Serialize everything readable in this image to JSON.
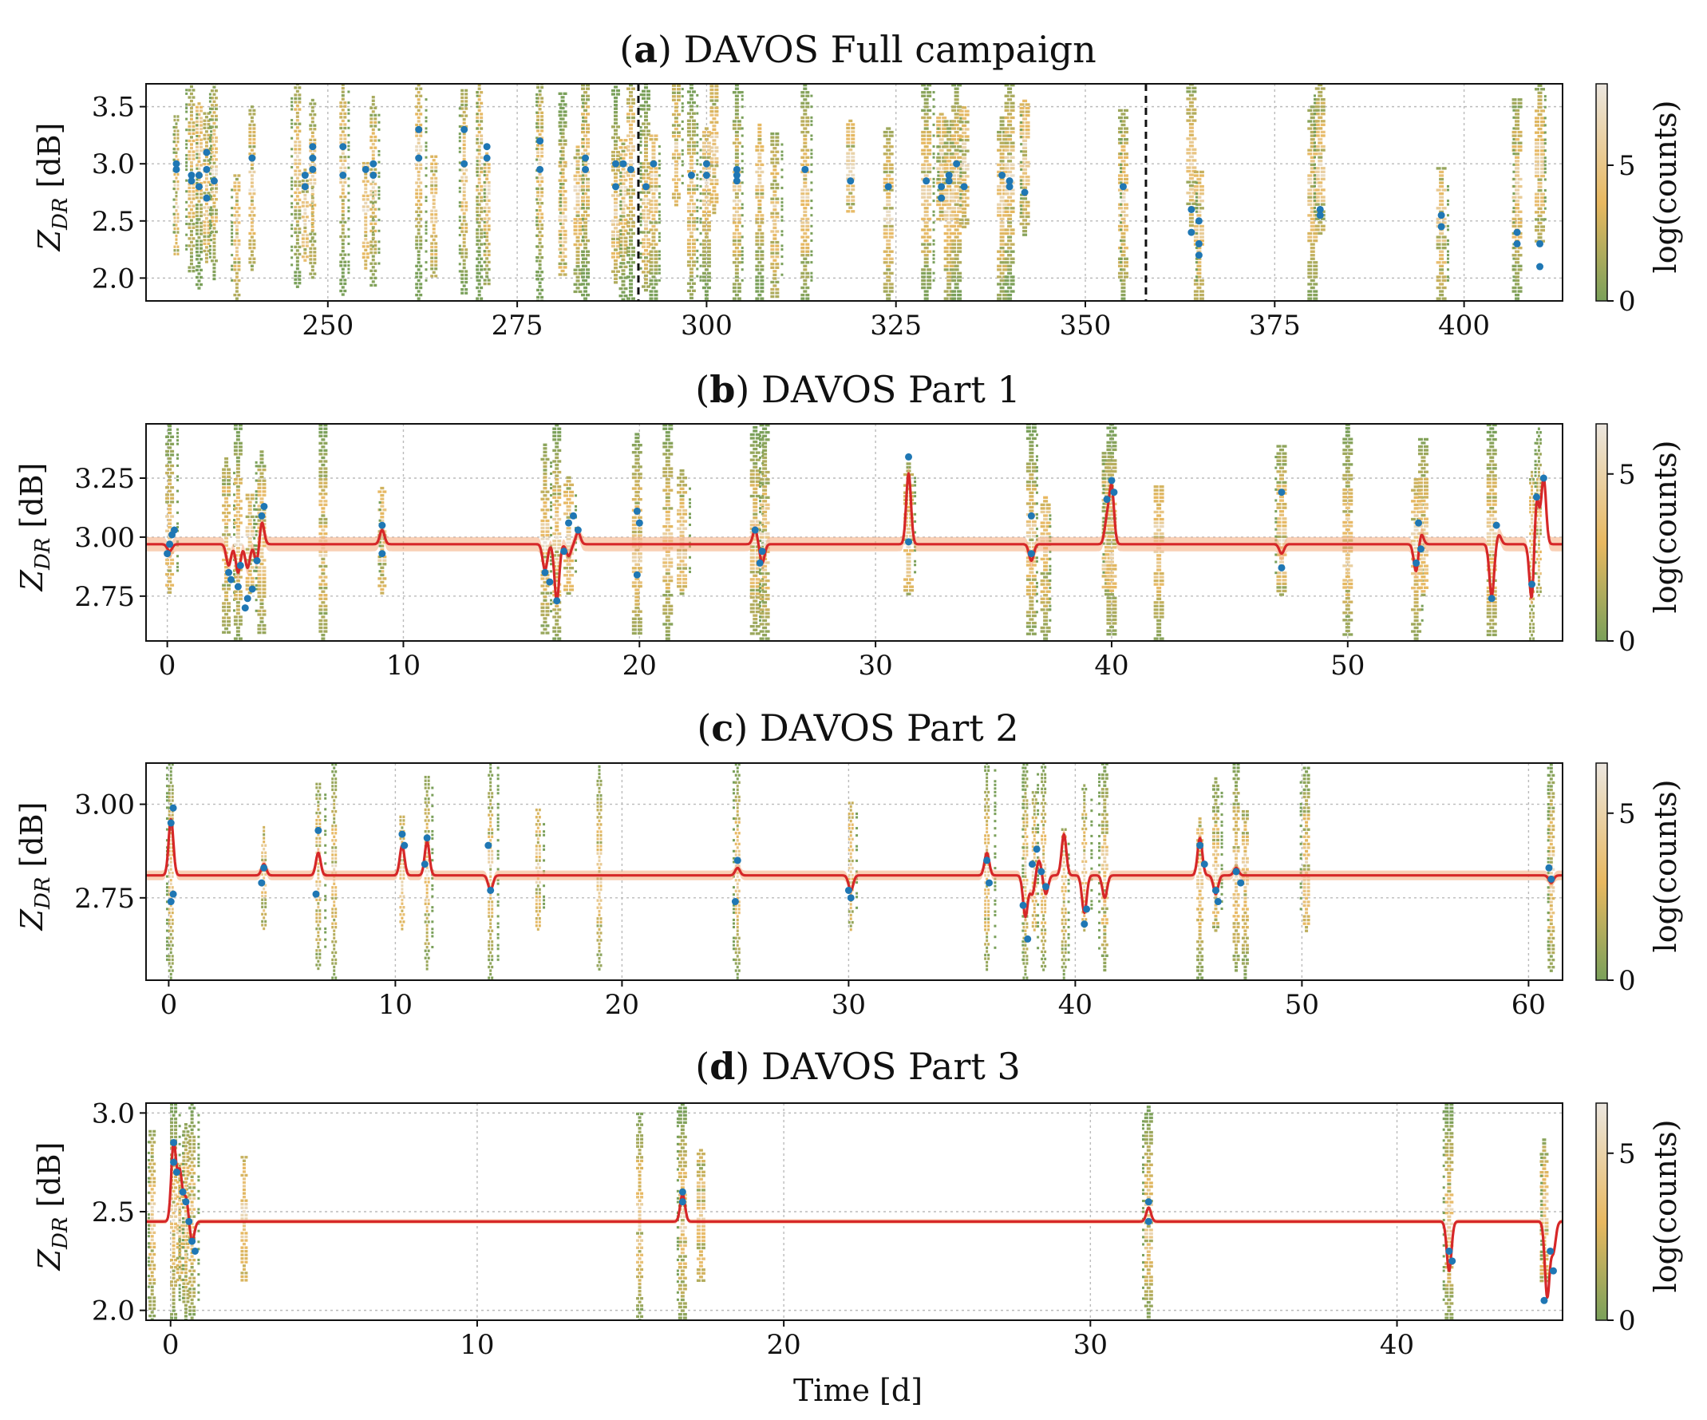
{
  "figure": {
    "xlabel": "Time [d]"
  },
  "colors": {
    "point": "#1f77b4",
    "fit": "#d62728",
    "band": "#f4a97a",
    "grid": "#bbbbbb",
    "hist_low": "#7aa05a",
    "hist_mid": "#e8b860",
    "hist_high": "#e9e4dc"
  },
  "colorbar": {
    "label": "log(counts)"
  },
  "chart_data": [
    {
      "type": "scatter",
      "panel_label": "a",
      "title": "DAVOS Full campaign",
      "ylabel_main": "Z",
      "ylabel_sub": "DR",
      "ylabel_unit": " [dB]",
      "xlim": [
        226,
        413
      ],
      "ylim": [
        1.8,
        3.7
      ],
      "xticks": [
        250,
        275,
        300,
        325,
        350,
        375,
        400
      ],
      "xtick_labels": [
        "250",
        "275",
        "300",
        "325",
        "350",
        "375",
        "400"
      ],
      "yticks": [
        2.0,
        2.5,
        3.0,
        3.5
      ],
      "ytick_labels": [
        "2.0",
        "2.5",
        "3.0",
        "3.5"
      ],
      "colorbar_ticks": [
        0,
        5
      ],
      "colorbar_tick_labels": [
        "0",
        "5"
      ],
      "colorbar_max": 8,
      "vlines": [
        291,
        358
      ],
      "event_times": [
        230,
        232,
        233,
        234,
        235,
        238,
        240,
        246,
        247,
        248,
        252,
        255,
        256,
        262,
        264,
        268,
        270,
        271,
        278,
        281,
        283,
        284,
        288,
        289,
        290,
        292,
        293,
        296,
        298,
        300,
        301,
        304,
        307,
        309,
        313,
        319,
        324,
        329,
        331,
        332,
        333,
        334,
        339,
        340,
        342,
        355,
        364,
        365,
        380,
        381,
        397,
        407,
        410
      ],
      "points": [
        [
          230,
          2.95
        ],
        [
          230,
          3.0
        ],
        [
          232,
          2.85
        ],
        [
          232,
          2.9
        ],
        [
          233,
          2.8
        ],
        [
          233,
          2.9
        ],
        [
          234,
          2.7
        ],
        [
          234,
          2.95
        ],
        [
          234,
          3.1
        ],
        [
          235,
          2.85
        ],
        [
          240,
          3.05
        ],
        [
          247,
          2.8
        ],
        [
          247,
          2.9
        ],
        [
          248,
          2.95
        ],
        [
          248,
          3.05
        ],
        [
          248,
          3.15
        ],
        [
          252,
          2.9
        ],
        [
          252,
          3.15
        ],
        [
          255,
          2.95
        ],
        [
          256,
          3.0
        ],
        [
          256,
          2.9
        ],
        [
          262,
          3.05
        ],
        [
          262,
          3.3
        ],
        [
          268,
          3.0
        ],
        [
          268,
          3.3
        ],
        [
          271,
          3.05
        ],
        [
          271,
          3.15
        ],
        [
          278,
          2.95
        ],
        [
          278,
          3.2
        ],
        [
          284,
          2.95
        ],
        [
          284,
          3.05
        ],
        [
          288,
          2.8
        ],
        [
          288,
          3.0
        ],
        [
          289,
          3.0
        ],
        [
          290,
          2.95
        ],
        [
          292,
          2.8
        ],
        [
          293,
          3.0
        ],
        [
          298,
          2.9
        ],
        [
          300,
          2.9
        ],
        [
          300,
          3.0
        ],
        [
          304,
          2.9
        ],
        [
          304,
          2.95
        ],
        [
          304,
          2.85
        ],
        [
          313,
          2.95
        ],
        [
          319,
          2.85
        ],
        [
          324,
          2.8
        ],
        [
          329,
          2.85
        ],
        [
          331,
          2.7
        ],
        [
          331,
          2.8
        ],
        [
          332,
          2.85
        ],
        [
          332,
          2.9
        ],
        [
          333,
          3.0
        ],
        [
          334,
          2.8
        ],
        [
          339,
          2.9
        ],
        [
          340,
          2.8
        ],
        [
          340,
          2.85
        ],
        [
          342,
          2.75
        ],
        [
          355,
          2.8
        ],
        [
          364,
          2.6
        ],
        [
          364,
          2.4
        ],
        [
          365,
          2.3
        ],
        [
          365,
          2.5
        ],
        [
          365,
          2.2
        ],
        [
          381,
          2.55
        ],
        [
          381,
          2.6
        ],
        [
          397,
          2.45
        ],
        [
          397,
          2.55
        ],
        [
          407,
          2.3
        ],
        [
          407,
          2.4
        ],
        [
          410,
          2.1
        ],
        [
          410,
          2.3
        ]
      ]
    },
    {
      "type": "scatter",
      "panel_label": "b",
      "title": "DAVOS Part 1",
      "ylabel_main": "Z",
      "ylabel_sub": "DR",
      "ylabel_unit": " [dB]",
      "xlim": [
        -0.9,
        59.1
      ],
      "ylim": [
        2.56,
        3.48
      ],
      "xticks": [
        0,
        10,
        20,
        30,
        40,
        50
      ],
      "xtick_labels": [
        "0",
        "10",
        "20",
        "30",
        "40",
        "50"
      ],
      "yticks": [
        2.75,
        3.0,
        3.25
      ],
      "ytick_labels": [
        "2.75",
        "3.00",
        "3.25"
      ],
      "colorbar_ticks": [
        0,
        5
      ],
      "colorbar_tick_labels": [
        "0",
        "5"
      ],
      "colorbar_max": 6.5,
      "fit_baseline": 2.97,
      "band_half_width": 0.03,
      "event_times": [
        0.1,
        2.5,
        3.0,
        3.5,
        4.0,
        6.6,
        9.1,
        16.0,
        16.5,
        17.0,
        19.9,
        21.2,
        21.8,
        24.9,
        25.3,
        31.4,
        36.6,
        37.2,
        39.8,
        40.0,
        42.0,
        47.2,
        50.0,
        52.9,
        53.2,
        56.1,
        57.8,
        58.1
      ],
      "fit_events": [
        [
          0.1,
          -0.03
        ],
        [
          2.6,
          -0.09
        ],
        [
          3.0,
          -0.12
        ],
        [
          3.4,
          -0.1
        ],
        [
          3.8,
          -0.08
        ],
        [
          4.0,
          0.1
        ],
        [
          9.1,
          0.06
        ],
        [
          16.0,
          -0.11
        ],
        [
          16.5,
          -0.24
        ],
        [
          17.0,
          -0.05
        ],
        [
          17.4,
          0.05
        ],
        [
          19.9,
          -0.1
        ],
        [
          19.9,
          0.1
        ],
        [
          24.9,
          0.06
        ],
        [
          25.2,
          -0.08
        ],
        [
          31.4,
          0.3
        ],
        [
          36.6,
          -0.07
        ],
        [
          39.8,
          0.1
        ],
        [
          40.0,
          0.24
        ],
        [
          47.2,
          -0.1
        ],
        [
          47.2,
          0.06
        ],
        [
          52.9,
          -0.12
        ],
        [
          53.1,
          0.05
        ],
        [
          56.1,
          -0.22
        ],
        [
          56.4,
          0.04
        ],
        [
          57.8,
          -0.25
        ],
        [
          58.0,
          0.21
        ],
        [
          58.3,
          0.28
        ]
      ],
      "points": [
        [
          0.0,
          2.93
        ],
        [
          0.1,
          2.97
        ],
        [
          0.2,
          3.01
        ],
        [
          0.3,
          3.03
        ],
        [
          2.6,
          2.85
        ],
        [
          2.7,
          2.82
        ],
        [
          3.0,
          2.79
        ],
        [
          3.1,
          2.88
        ],
        [
          3.3,
          2.7
        ],
        [
          3.4,
          2.74
        ],
        [
          3.6,
          2.78
        ],
        [
          3.8,
          2.9
        ],
        [
          4.0,
          3.09
        ],
        [
          4.1,
          3.13
        ],
        [
          9.1,
          3.05
        ],
        [
          9.1,
          2.93
        ],
        [
          16.0,
          2.85
        ],
        [
          16.2,
          2.81
        ],
        [
          16.5,
          2.73
        ],
        [
          16.8,
          2.94
        ],
        [
          17.0,
          3.06
        ],
        [
          17.2,
          3.09
        ],
        [
          17.4,
          3.03
        ],
        [
          19.9,
          2.84
        ],
        [
          19.9,
          3.11
        ],
        [
          20.0,
          3.06
        ],
        [
          24.9,
          3.03
        ],
        [
          25.1,
          2.89
        ],
        [
          25.2,
          2.94
        ],
        [
          31.4,
          3.34
        ],
        [
          31.4,
          2.98
        ],
        [
          36.6,
          3.09
        ],
        [
          36.6,
          2.93
        ],
        [
          39.8,
          3.16
        ],
        [
          40.0,
          3.24
        ],
        [
          40.1,
          3.19
        ],
        [
          47.2,
          3.19
        ],
        [
          47.2,
          2.87
        ],
        [
          52.9,
          2.89
        ],
        [
          53.0,
          3.06
        ],
        [
          53.1,
          2.95
        ],
        [
          56.1,
          2.74
        ],
        [
          56.3,
          3.05
        ],
        [
          57.8,
          2.8
        ],
        [
          58.0,
          3.17
        ],
        [
          58.3,
          3.25
        ]
      ]
    },
    {
      "type": "scatter",
      "panel_label": "c",
      "title": "DAVOS Part 2",
      "ylabel_main": "Z",
      "ylabel_sub": "DR",
      "ylabel_unit": " [dB]",
      "xlim": [
        -1.0,
        61.5
      ],
      "ylim": [
        2.53,
        3.11
      ],
      "xticks": [
        0,
        10,
        20,
        30,
        40,
        50,
        60
      ],
      "xtick_labels": [
        "0",
        "10",
        "20",
        "30",
        "40",
        "50",
        "60"
      ],
      "yticks": [
        2.75,
        3.0
      ],
      "ytick_labels": [
        "2.75",
        "3.00"
      ],
      "colorbar_ticks": [
        0,
        5
      ],
      "colorbar_tick_labels": [
        "0",
        "5"
      ],
      "colorbar_max": 6.5,
      "fit_baseline": 2.81,
      "band_half_width": 0.013,
      "event_times": [
        0.1,
        4.2,
        6.6,
        7.3,
        10.3,
        11.4,
        14.2,
        16.3,
        19.0,
        25.1,
        30.1,
        36.1,
        37.8,
        38.2,
        38.6,
        39.5,
        40.4,
        41.3,
        45.5,
        46.2,
        47.1,
        47.5,
        50.2,
        61.0
      ],
      "fit_events": [
        [
          0.1,
          0.15
        ],
        [
          4.2,
          0.03
        ],
        [
          6.6,
          0.06
        ],
        [
          10.3,
          0.08
        ],
        [
          11.4,
          0.09
        ],
        [
          14.2,
          -0.04
        ],
        [
          25.1,
          0.02
        ],
        [
          30.1,
          -0.04
        ],
        [
          36.1,
          0.06
        ],
        [
          37.8,
          -0.11
        ],
        [
          38.1,
          -0.05
        ],
        [
          38.4,
          0.04
        ],
        [
          38.7,
          -0.05
        ],
        [
          39.5,
          0.11
        ],
        [
          40.4,
          -0.1
        ],
        [
          41.3,
          -0.06
        ],
        [
          45.5,
          0.1
        ],
        [
          46.2,
          -0.05
        ],
        [
          47.1,
          0.02
        ],
        [
          61.0,
          -0.02
        ]
      ],
      "points": [
        [
          0.1,
          2.95
        ],
        [
          0.2,
          2.99
        ],
        [
          0.1,
          2.74
        ],
        [
          0.2,
          2.76
        ],
        [
          4.2,
          2.83
        ],
        [
          4.1,
          2.79
        ],
        [
          6.6,
          2.93
        ],
        [
          6.5,
          2.76
        ],
        [
          10.3,
          2.92
        ],
        [
          10.4,
          2.89
        ],
        [
          11.4,
          2.91
        ],
        [
          11.3,
          2.84
        ],
        [
          14.2,
          2.77
        ],
        [
          14.1,
          2.89
        ],
        [
          25.1,
          2.85
        ],
        [
          25.0,
          2.74
        ],
        [
          30.1,
          2.75
        ],
        [
          30.0,
          2.77
        ],
        [
          36.1,
          2.85
        ],
        [
          36.2,
          2.79
        ],
        [
          37.7,
          2.73
        ],
        [
          37.9,
          2.64
        ],
        [
          38.1,
          2.84
        ],
        [
          38.3,
          2.88
        ],
        [
          38.5,
          2.82
        ],
        [
          38.7,
          2.78
        ],
        [
          40.4,
          2.68
        ],
        [
          40.5,
          2.72
        ],
        [
          45.5,
          2.89
        ],
        [
          45.7,
          2.84
        ],
        [
          46.2,
          2.77
        ],
        [
          46.3,
          2.74
        ],
        [
          47.1,
          2.82
        ],
        [
          47.3,
          2.79
        ],
        [
          60.9,
          2.83
        ],
        [
          61.0,
          2.8
        ]
      ]
    },
    {
      "type": "scatter",
      "panel_label": "d",
      "title": "DAVOS Part 3",
      "ylabel_main": "Z",
      "ylabel_sub": "DR",
      "ylabel_unit": " [dB]",
      "xlim": [
        -0.8,
        45.4
      ],
      "ylim": [
        1.95,
        3.05
      ],
      "xticks": [
        0,
        10,
        20,
        30,
        40
      ],
      "xtick_labels": [
        "0",
        "10",
        "20",
        "30",
        "40"
      ],
      "yticks": [
        2.0,
        2.5,
        3.0
      ],
      "ytick_labels": [
        "2.0",
        "2.5",
        "3.0"
      ],
      "colorbar_ticks": [
        0,
        5
      ],
      "colorbar_tick_labels": [
        "0",
        "5"
      ],
      "colorbar_max": 6.5,
      "fit_baseline": 2.45,
      "band_half_width": 0.012,
      "event_times": [
        -0.6,
        0.1,
        0.3,
        0.5,
        0.7,
        2.4,
        15.3,
        16.7,
        17.3,
        31.9,
        41.7,
        44.8
      ],
      "fit_events": [
        [
          0.1,
          0.4
        ],
        [
          0.3,
          0.25
        ],
        [
          0.5,
          0.12
        ],
        [
          0.7,
          -0.1
        ],
        [
          16.7,
          0.14
        ],
        [
          31.9,
          0.07
        ],
        [
          41.7,
          -0.25
        ],
        [
          44.9,
          -0.38
        ],
        [
          45.1,
          -0.15
        ]
      ],
      "points": [
        [
          0.1,
          2.85
        ],
        [
          0.1,
          2.75
        ],
        [
          0.2,
          2.7
        ],
        [
          0.4,
          2.6
        ],
        [
          0.5,
          2.55
        ],
        [
          0.6,
          2.45
        ],
        [
          0.7,
          2.35
        ],
        [
          0.8,
          2.3
        ],
        [
          16.7,
          2.6
        ],
        [
          16.7,
          2.55
        ],
        [
          31.9,
          2.55
        ],
        [
          31.9,
          2.45
        ],
        [
          41.7,
          2.3
        ],
        [
          41.8,
          2.25
        ],
        [
          44.8,
          2.05
        ],
        [
          45.0,
          2.3
        ],
        [
          45.1,
          2.2
        ]
      ]
    }
  ]
}
